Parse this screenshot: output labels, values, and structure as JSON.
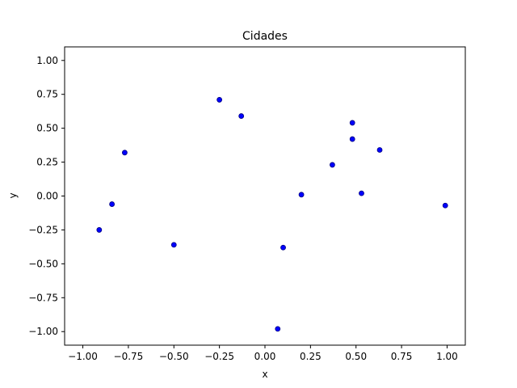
{
  "chart_data": {
    "type": "scatter",
    "title": "Cidades",
    "xlabel": "x",
    "ylabel": "y",
    "xlim": [
      -1.1,
      1.1
    ],
    "ylim": [
      -1.1,
      1.1
    ],
    "xticks": [
      -1.0,
      -0.75,
      -0.5,
      -0.25,
      0.0,
      0.25,
      0.5,
      0.75,
      1.0
    ],
    "yticks": [
      -1.0,
      -0.75,
      -0.5,
      -0.25,
      0.0,
      0.25,
      0.5,
      0.75,
      1.0
    ],
    "xtick_labels": [
      "−1.00",
      "−0.75",
      "−0.50",
      "−0.25",
      "0.00",
      "0.25",
      "0.50",
      "0.75",
      "1.00"
    ],
    "ytick_labels": [
      "−1.00",
      "−0.75",
      "−0.50",
      "−0.25",
      "0.00",
      "0.25",
      "0.50",
      "0.75",
      "1.00"
    ],
    "grid": false,
    "series": [
      {
        "color": "#0000ff",
        "edge_color": "#000080",
        "points": [
          {
            "x": -0.91,
            "y": -0.25
          },
          {
            "x": -0.84,
            "y": -0.06
          },
          {
            "x": -0.77,
            "y": 0.32
          },
          {
            "x": -0.5,
            "y": -0.36
          },
          {
            "x": -0.25,
            "y": 0.71
          },
          {
            "x": -0.13,
            "y": 0.59
          },
          {
            "x": 0.07,
            "y": -0.98
          },
          {
            "x": 0.1,
            "y": -0.38
          },
          {
            "x": 0.2,
            "y": 0.01
          },
          {
            "x": 0.37,
            "y": 0.23
          },
          {
            "x": 0.48,
            "y": 0.54
          },
          {
            "x": 0.48,
            "y": 0.42
          },
          {
            "x": 0.53,
            "y": 0.02
          },
          {
            "x": 0.63,
            "y": 0.34
          },
          {
            "x": 0.99,
            "y": -0.07
          }
        ]
      }
    ]
  }
}
